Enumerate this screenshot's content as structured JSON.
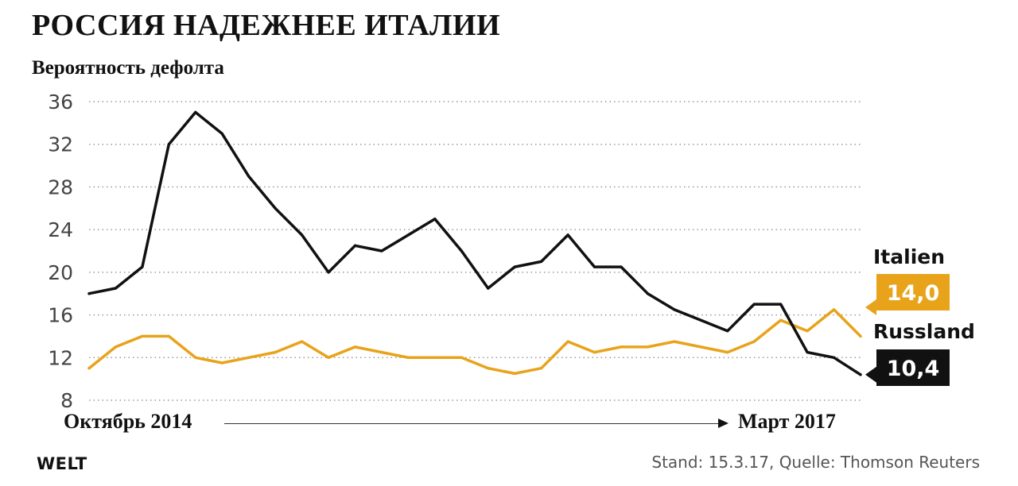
{
  "title": "РОССИЯ НАДЕЖНЕЕ ИТАЛИИ",
  "subtitle": "Вероятность дефолта",
  "brand": "WELT",
  "footer": "Stand: 15.3.17, Quelle: Thomson Reuters",
  "time_range": {
    "start": "Октябрь 2014",
    "end": "Март 2017"
  },
  "colors": {
    "russland": "#111111",
    "italien": "#E8A31A",
    "grid": "#9a9a9a"
  },
  "chart_data": {
    "type": "line",
    "title": "РОССИЯ НАДЕЖНЕЕ ИТАЛИИ",
    "ylabel": "Вероятность дефолта",
    "xlabel": "",
    "ylim": [
      8,
      36
    ],
    "yticks": [
      "36",
      "32",
      "28",
      "24",
      "20",
      "16",
      "12",
      "8"
    ],
    "grid": true,
    "x": [
      "2014-10",
      "2014-11",
      "2014-12",
      "2015-01",
      "2015-02",
      "2015-03",
      "2015-04",
      "2015-05",
      "2015-06",
      "2015-07",
      "2015-08",
      "2015-09",
      "2015-10",
      "2015-11",
      "2015-12",
      "2016-01",
      "2016-02",
      "2016-03",
      "2016-04",
      "2016-05",
      "2016-06",
      "2016-07",
      "2016-08",
      "2016-09",
      "2016-10",
      "2016-11",
      "2016-12",
      "2017-01",
      "2017-02",
      "2017-03"
    ],
    "series": [
      {
        "name": "Russland",
        "end_label": "10,4",
        "values": [
          18.0,
          18.5,
          20.5,
          32.0,
          35.0,
          33.0,
          29.0,
          26.0,
          23.5,
          20.0,
          22.5,
          22.0,
          23.5,
          25.0,
          22.0,
          18.5,
          20.5,
          21.0,
          23.5,
          20.5,
          20.5,
          18.0,
          16.5,
          15.5,
          14.5,
          17.0,
          17.0,
          12.5,
          12.0,
          10.4
        ]
      },
      {
        "name": "Italien",
        "end_label": "14,0",
        "values": [
          11.0,
          13.0,
          14.0,
          14.0,
          12.0,
          11.5,
          12.0,
          12.5,
          13.5,
          12.0,
          13.0,
          12.5,
          12.0,
          12.0,
          12.0,
          11.0,
          10.5,
          11.0,
          13.5,
          12.5,
          13.0,
          13.0,
          13.5,
          13.0,
          12.5,
          13.5,
          15.5,
          14.5,
          16.5,
          14.0
        ]
      }
    ]
  }
}
